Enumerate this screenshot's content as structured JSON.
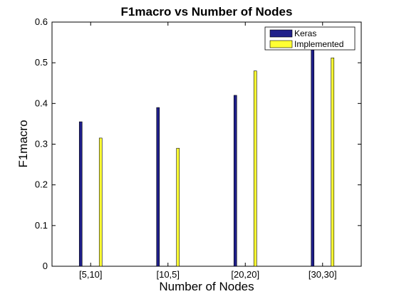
{
  "chart_data": {
    "type": "bar",
    "title": "F1macro vs Number of Nodes",
    "xlabel": "Number of Nodes",
    "ylabel": "F1macro",
    "categories": [
      "[5,10]",
      "[10,5]",
      "[20,20]",
      "[30,30]"
    ],
    "series": [
      {
        "name": "Keras",
        "values": [
          0.355,
          0.39,
          0.42,
          0.535
        ],
        "color": "#1f1f8a"
      },
      {
        "name": "Implemented",
        "values": [
          0.315,
          0.29,
          0.48,
          0.512
        ],
        "color": "#ffff33"
      }
    ],
    "ylim": [
      0,
      0.6
    ],
    "yticks": [
      "0",
      "0.1",
      "0.2",
      "0.3",
      "0.4",
      "0.5",
      "0.6"
    ],
    "grid": false,
    "legend_position": "top-right"
  }
}
